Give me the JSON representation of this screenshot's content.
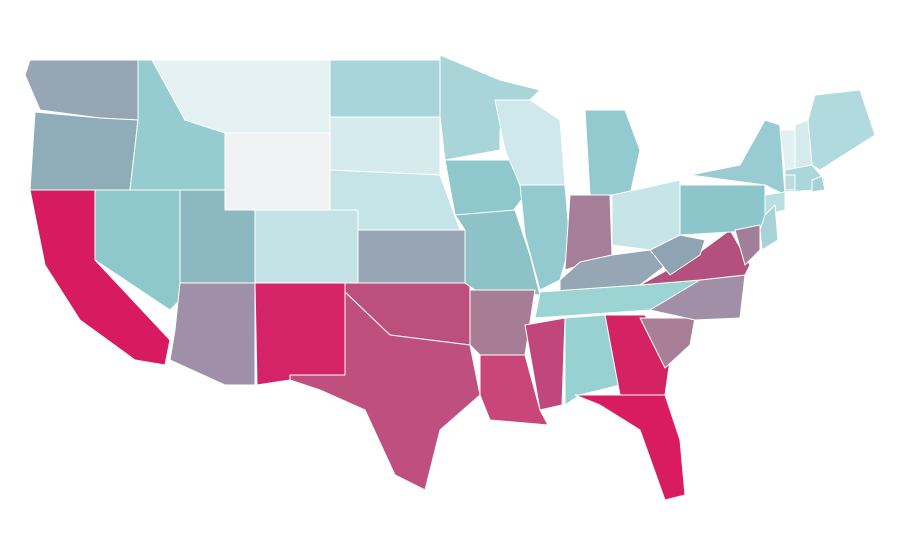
{
  "map": {
    "type": "choropleth",
    "regions": [
      {
        "color": "#97a6b4"
      },
      {
        "color": "#8fadb8"
      },
      {
        "color": "#d81b60"
      },
      {
        "color": "#8ec8cb"
      },
      {
        "color": "#96cbd0"
      },
      {
        "color": "#e4f2f4"
      },
      {
        "color": "#f0f2f4"
      },
      {
        "color": "#8cb8c0"
      },
      {
        "color": "#a08fa8"
      },
      {
        "color": "#c4e3e6"
      },
      {
        "color": "#d42367"
      },
      {
        "color": "#a8d5d9"
      },
      {
        "color": "#d6ebee"
      },
      {
        "color": "#c4e4e7"
      },
      {
        "color": "#97a5b5"
      },
      {
        "color": "#bd4f7e"
      },
      {
        "color": "#bf4f7f"
      },
      {
        "color": "#a9d4d8"
      },
      {
        "color": "#8fc8cc"
      },
      {
        "color": "#8dc3c7"
      },
      {
        "color": "#a77d96"
      },
      {
        "color": "#c9467a"
      },
      {
        "color": "#cee8eb"
      },
      {
        "color": "#93cacf"
      },
      {
        "color": "#93cacf"
      },
      {
        "color": "#a77e9a"
      },
      {
        "color": "#c7e4e7"
      },
      {
        "color": "#96a6b4"
      },
      {
        "color": "#9cd4d4"
      },
      {
        "color": "#c0467c"
      },
      {
        "color": "#98d1d1"
      },
      {
        "color": "#d52262"
      },
      {
        "color": "#d91b60"
      },
      {
        "color": "#a97f98"
      },
      {
        "color": "#a08fa7"
      },
      {
        "color": "#b4507d"
      },
      {
        "color": "#8fa4b3"
      },
      {
        "color": "#8cc6cb"
      },
      {
        "color": "#98ccd2"
      },
      {
        "color": "#e1f0f2"
      },
      {
        "color": "#d4eaec"
      },
      {
        "color": "#b0dadd"
      },
      {
        "color": "#a9d7da"
      },
      {
        "color": "#b9dfe2"
      },
      {
        "color": "#a6d3d7"
      },
      {
        "color": "#a17e99"
      },
      {
        "color": "#bcdde0"
      },
      {
        "color": "#a6d2d5"
      }
    ]
  }
}
